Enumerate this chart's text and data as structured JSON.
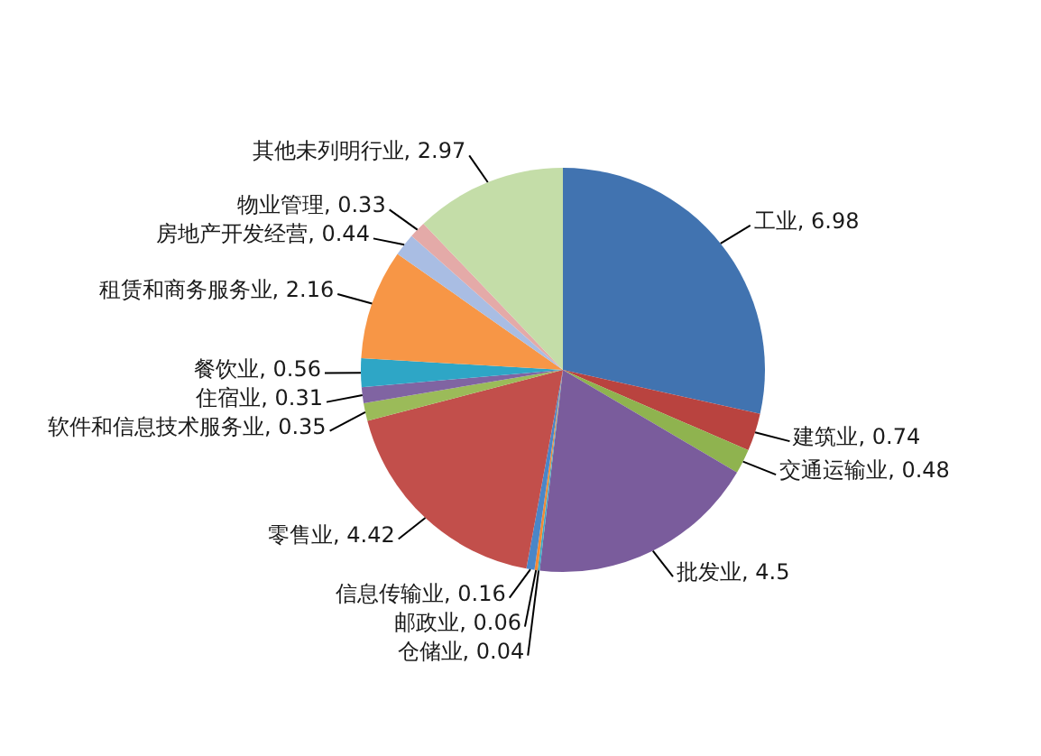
{
  "chart_data": {
    "type": "pie",
    "categories": [
      "工业",
      "建筑业",
      "交通运输业",
      "批发业",
      "仓储业",
      "邮政业",
      "信息传输业",
      "零售业",
      "软件和信息技术服务业",
      "住宿业",
      "餐饮业",
      "租赁和商务服务业",
      "房地产开发经营",
      "物业管理",
      "其他未列明行业"
    ],
    "values": [
      6.98,
      0.74,
      0.48,
      4.5,
      0.04,
      0.06,
      0.16,
      4.42,
      0.35,
      0.31,
      0.56,
      2.16,
      0.44,
      0.33,
      2.97
    ],
    "value_labels": [
      ", 6.98",
      ", 0.74",
      ", 0.48",
      ", 4.5",
      ", 0.04",
      ", 0.06",
      ", 0.16",
      ", 4.42",
      ", 0.35",
      ", 0.31",
      ", 0.56",
      ", 2.16",
      ", 0.44",
      ", 0.33",
      ", 2.97"
    ],
    "colors": [
      "#4173b0",
      "#b9433f",
      "#8fb34f",
      "#7a5c9c",
      "#3fa9c5",
      "#f28a35",
      "#4a86c8",
      "#c24f4b",
      "#9bbb59",
      "#8064a2",
      "#2ea6c6",
      "#f79646",
      "#a9bde3",
      "#e4aaa8",
      "#c4dda8"
    ]
  }
}
